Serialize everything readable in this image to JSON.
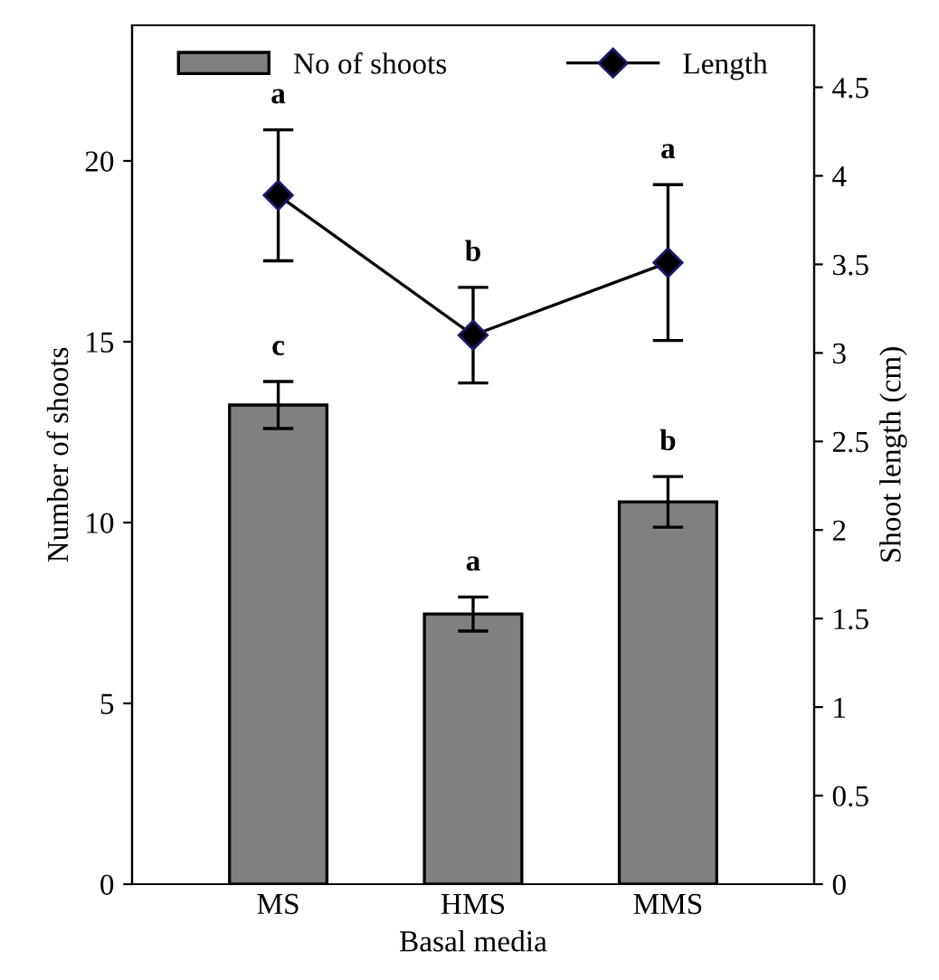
{
  "chart_data": {
    "type": "bar",
    "xlabel": "Basal media",
    "ylabel": "Number of shoots",
    "y2label": "Shoot length (cm)",
    "categories": [
      "MS",
      "HMS",
      "MMS"
    ],
    "series": [
      {
        "name": "No of shoots",
        "color": "#808080",
        "values": [
          13.25,
          7.47,
          10.57
        ],
        "errors": [
          0.65,
          0.47,
          0.7
        ]
      },
      {
        "name": "Length",
        "type": "line",
        "axis": "y2",
        "color": "#000000",
        "marker": "diamond",
        "values": [
          3.89,
          3.1,
          3.51
        ],
        "errors": [
          0.37,
          0.27,
          0.44
        ]
      }
    ],
    "ylim": [
      0,
      23.75
    ],
    "yticks": [
      0,
      5,
      10,
      15,
      20
    ],
    "y2lim": [
      0,
      4.85
    ],
    "y2ticks": [
      0,
      0.5,
      1,
      1.5,
      2,
      2.5,
      3,
      3.5,
      4,
      4.5
    ],
    "annotations": [
      "c",
      "a",
      "b",
      "a",
      "b",
      "a"
    ],
    "legend": "top",
    "grid": false
  }
}
